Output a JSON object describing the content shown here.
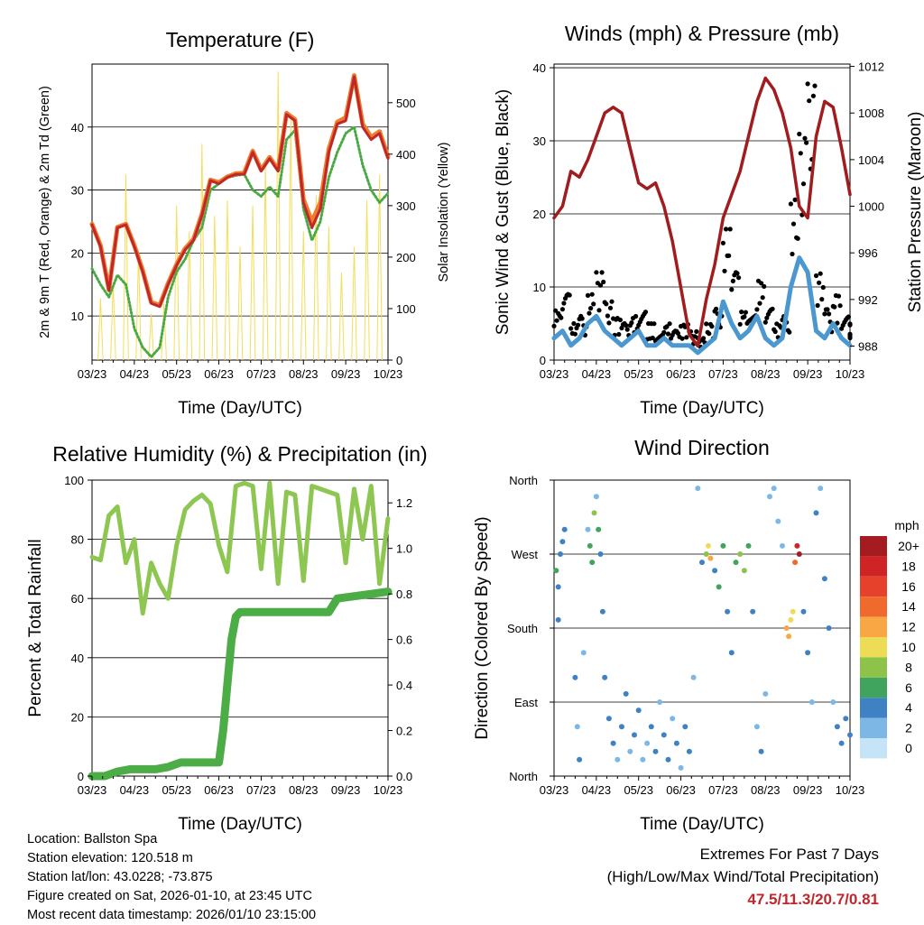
{
  "footer": {
    "location": "Location: Ballston Spa",
    "elevation": "Station elevation: 120.518 m",
    "latlon": "Station lat/lon: 43.0228; -73.875",
    "created": "Figure created on Sat, 2026-01-10, at 23:45 UTC",
    "recent": "Most recent data timestamp: 2026/01/10 23:15:00",
    "extremes_title": "Extremes For Past 7 Days",
    "extremes_sub": "(High/Low/Max Wind/Total Precipitation)",
    "extremes_values": "47.5/11.3/20.7/0.81"
  },
  "chart_data": [
    {
      "id": "temperature",
      "type": "line",
      "title": "Temperature (F)",
      "xlabel": "Time (Day/UTC)",
      "ylabel": "2m & 9m T (Red, Orange) & 2m Td (Green)",
      "y2label": "Solar Insolation (Yellow)",
      "x_ticks": [
        "03/23",
        "04/23",
        "05/23",
        "06/23",
        "07/23",
        "08/23",
        "09/23",
        "10/23"
      ],
      "ylim": [
        3,
        50
      ],
      "y_ticks": [
        10,
        20,
        30,
        40
      ],
      "y2lim": [
        0,
        575
      ],
      "y2_ticks": [
        0,
        100,
        200,
        300,
        400,
        500
      ],
      "x": [
        0,
        0.2,
        0.4,
        0.6,
        0.8,
        1.0,
        1.2,
        1.4,
        1.6,
        1.8,
        2.0,
        2.2,
        2.4,
        2.6,
        2.8,
        3.0,
        3.2,
        3.4,
        3.6,
        3.8,
        4.0,
        4.2,
        4.4,
        4.6,
        4.8,
        5.0,
        5.2,
        5.4,
        5.6,
        5.8,
        6.0,
        6.2,
        6.4,
        6.6,
        6.8,
        7.0
      ],
      "series": [
        {
          "name": "2m T",
          "color": "#c0272d",
          "values": [
            24.5,
            21,
            14,
            24,
            24.5,
            21,
            17,
            12,
            11.5,
            15,
            18,
            20.5,
            22,
            26,
            31.5,
            31,
            32,
            32.5,
            32.5,
            36,
            33,
            35,
            33,
            42,
            41,
            28,
            24,
            27,
            36,
            40.5,
            41,
            48,
            40,
            38,
            39,
            35
          ]
        },
        {
          "name": "9m T",
          "color": "#f07d28",
          "values": [
            24.6,
            21.2,
            14.2,
            24.1,
            24.6,
            21.2,
            17.2,
            12.2,
            11.7,
            15.2,
            18.2,
            20.7,
            22.2,
            26.2,
            31.6,
            31.2,
            32.1,
            32.6,
            32.7,
            36.2,
            33.2,
            35.2,
            33.2,
            42.2,
            41.2,
            28.5,
            25,
            28,
            36.5,
            40.8,
            41.5,
            48.2,
            40.5,
            38.4,
            39.3,
            35.3
          ]
        },
        {
          "name": "2m Td",
          "color": "#49a942",
          "values": [
            17.5,
            15,
            13,
            16.5,
            15,
            8,
            5,
            3.5,
            5,
            13,
            17,
            19,
            22,
            24,
            30,
            31,
            32,
            32.3,
            32.5,
            30,
            29,
            30.5,
            29,
            38,
            39.5,
            27,
            22,
            25,
            32,
            36,
            39,
            40,
            34,
            30,
            28,
            29.5
          ]
        }
      ],
      "solar": {
        "name": "Solar Insolation",
        "color": "#f5dd5a",
        "days": [
          0.2,
          0.5,
          0.8,
          1.1,
          1.4,
          1.7,
          2.0,
          2.3,
          2.6,
          2.9,
          3.2,
          3.5,
          3.8,
          4.1,
          4.4,
          4.7,
          5.0,
          5.3,
          5.6,
          5.9,
          6.2,
          6.5,
          6.8
        ],
        "peaks": [
          120,
          150,
          360,
          210,
          90,
          110,
          300,
          250,
          420,
          280,
          310,
          220,
          300,
          380,
          560,
          470,
          250,
          320,
          260,
          170,
          220,
          310,
          360
        ]
      }
    },
    {
      "id": "winds",
      "type": "line",
      "title": "Winds (mph) & Pressure (mb)",
      "xlabel": "Time (Day/UTC)",
      "ylabel": "Sonic Wind & Gust (Blue, Black)",
      "y2label": "Station Pressure (Maroon)",
      "x_ticks": [
        "03/23",
        "04/23",
        "05/23",
        "06/23",
        "07/23",
        "08/23",
        "09/23",
        "10/23"
      ],
      "ylim": [
        0,
        40.5
      ],
      "y_ticks": [
        0,
        10,
        20,
        30,
        40
      ],
      "y2lim": [
        986.8,
        1012.2
      ],
      "y2_ticks": [
        988,
        992,
        996,
        1000,
        1004,
        1008,
        1012
      ],
      "series": [
        {
          "name": "Station Pressure",
          "color": "#a01c1e",
          "x": [
            0,
            0.2,
            0.4,
            0.6,
            0.8,
            1.0,
            1.2,
            1.4,
            1.6,
            1.8,
            2.0,
            2.2,
            2.4,
            2.6,
            2.8,
            3.0,
            3.2,
            3.4,
            3.6,
            3.8,
            4.0,
            4.2,
            4.4,
            4.6,
            4.8,
            5.0,
            5.2,
            5.4,
            5.6,
            5.8,
            6.0,
            6.2,
            6.4,
            6.6,
            6.8,
            7.0
          ],
          "values": [
            999,
            1000,
            1003,
            1002.5,
            1004,
            1006,
            1008,
            1008.5,
            1008,
            1005,
            1002,
            1001.5,
            1002,
            1000,
            997,
            993,
            989,
            988,
            992,
            995,
            999,
            1001,
            1003,
            1006,
            1009,
            1011,
            1010,
            1008,
            1005,
            1000,
            999,
            1006,
            1009,
            1008.5,
            1005,
            1001
          ]
        },
        {
          "name": "Sonic Wind",
          "color": "#4b98d0",
          "x": [
            0,
            0.2,
            0.4,
            0.6,
            0.8,
            1.0,
            1.2,
            1.4,
            1.6,
            1.8,
            2.0,
            2.2,
            2.4,
            2.6,
            2.8,
            3.0,
            3.2,
            3.4,
            3.6,
            3.8,
            4.0,
            4.2,
            4.4,
            4.6,
            4.8,
            5.0,
            5.2,
            5.4,
            5.6,
            5.8,
            6.0,
            6.2,
            6.4,
            6.6,
            6.8,
            7.0
          ],
          "values": [
            3,
            4,
            2,
            3,
            5,
            6,
            4,
            3,
            2,
            3,
            4,
            2,
            2,
            3,
            2,
            2,
            2,
            1,
            2,
            3,
            8,
            5,
            3,
            4,
            6,
            3,
            2,
            3,
            10,
            14,
            12,
            4,
            3,
            5,
            3,
            2
          ]
        },
        {
          "name": "Gust",
          "color": "#000000",
          "x": [
            0,
            0.2,
            0.4,
            0.6,
            0.8,
            1.0,
            1.2,
            1.4,
            1.6,
            1.8,
            2.0,
            2.2,
            2.4,
            2.6,
            2.8,
            3.0,
            3.2,
            3.4,
            3.6,
            3.8,
            4.0,
            4.2,
            4.4,
            4.6,
            4.8,
            5.0,
            5.2,
            5.4,
            5.6,
            5.8,
            6.0,
            6.2,
            6.4,
            6.6,
            6.8,
            7.0
          ],
          "values": [
            7,
            9,
            5,
            6,
            9,
            12,
            8,
            6,
            5,
            6,
            7,
            5,
            4,
            5,
            4,
            5,
            4,
            3,
            5,
            7,
            18,
            12,
            7,
            9,
            11,
            7,
            5,
            6,
            22,
            31,
            38,
            12,
            7,
            9,
            6,
            5
          ]
        }
      ]
    },
    {
      "id": "humidity",
      "type": "line",
      "title": "Relative Humidity (%) & Precipitation (in)",
      "xlabel": "Time (Day/UTC)",
      "ylabel": "Percent & Total Rainfall",
      "x_ticks": [
        "03/23",
        "04/23",
        "05/23",
        "06/23",
        "07/23",
        "08/23",
        "09/23",
        "10/23"
      ],
      "ylim": [
        0,
        100
      ],
      "y_ticks": [
        0,
        20,
        40,
        60,
        80,
        100
      ],
      "y2lim": [
        0,
        1.3
      ],
      "y2_ticks": [
        "0.0",
        "0.2",
        "0.4",
        "0.6",
        "0.8",
        "1.0",
        "1.2"
      ],
      "series": [
        {
          "name": "Relative Humidity",
          "color": "#8dc751",
          "x": [
            0,
            0.2,
            0.4,
            0.6,
            0.8,
            1.0,
            1.2,
            1.4,
            1.6,
            1.8,
            2.0,
            2.2,
            2.4,
            2.6,
            2.8,
            3.0,
            3.2,
            3.4,
            3.6,
            3.8,
            4.0,
            4.2,
            4.4,
            4.6,
            4.8,
            5.0,
            5.2,
            5.4,
            5.6,
            5.8,
            6.0,
            6.2,
            6.4,
            6.6,
            6.8,
            7.0
          ],
          "values": [
            74,
            73,
            88,
            91,
            72,
            80,
            55,
            72,
            65,
            60,
            78,
            90,
            93,
            95,
            92,
            78,
            69,
            98,
            99,
            98,
            70,
            99,
            65,
            96,
            95,
            66,
            98,
            97,
            96,
            95,
            72,
            97,
            80,
            98,
            65,
            87
          ]
        },
        {
          "name": "Total Precipitation",
          "color": "#4cac45",
          "x": [
            0,
            0.3,
            0.6,
            0.9,
            1.2,
            1.5,
            1.8,
            2.1,
            2.4,
            2.7,
            3.0,
            3.1,
            3.2,
            3.3,
            3.4,
            3.5,
            3.6,
            3.8,
            4.0,
            4.5,
            5.0,
            5.4,
            5.6,
            5.8,
            6.2,
            6.6,
            7.0
          ],
          "values": [
            0,
            0,
            0.02,
            0.03,
            0.03,
            0.03,
            0.04,
            0.06,
            0.06,
            0.06,
            0.06,
            0.2,
            0.4,
            0.6,
            0.7,
            0.72,
            0.72,
            0.72,
            0.72,
            0.72,
            0.72,
            0.72,
            0.72,
            0.78,
            0.79,
            0.8,
            0.81
          ]
        }
      ]
    },
    {
      "id": "wind_direction",
      "type": "scatter",
      "title": "Wind Direction",
      "xlabel": "Time (Day/UTC)",
      "ylabel": "Direction (Colored By Speed)",
      "x_ticks": [
        "03/23",
        "04/23",
        "05/23",
        "06/23",
        "07/23",
        "08/23",
        "09/23",
        "10/23"
      ],
      "y_ticks": [
        "North",
        "East",
        "South",
        "West",
        "North"
      ],
      "ylim": [
        0,
        360
      ],
      "legend": {
        "title": "mph",
        "labels": [
          "20+",
          "18",
          "16",
          "14",
          "12",
          "10",
          "8",
          "6",
          "4",
          "2",
          "0"
        ],
        "colors": [
          "#a51c20",
          "#cf2426",
          "#e6412a",
          "#f0692d",
          "#f9a745",
          "#ecdc56",
          "#8ec34a",
          "#41a45e",
          "#3f82c4",
          "#7cb7e5",
          "#c5e4f7"
        ]
      },
      "points": [
        [
          0.05,
          250,
          5
        ],
        [
          0.1,
          230,
          4
        ],
        [
          0.15,
          270,
          4
        ],
        [
          0.2,
          285,
          3
        ],
        [
          0.25,
          300,
          4
        ],
        [
          0.1,
          190,
          4
        ],
        [
          0.5,
          120,
          3
        ],
        [
          0.55,
          60,
          2
        ],
        [
          0.6,
          20,
          4
        ],
        [
          0.7,
          150,
          2
        ],
        [
          0.8,
          300,
          2
        ],
        [
          0.85,
          280,
          6
        ],
        [
          0.9,
          260,
          5
        ],
        [
          0.95,
          320,
          7
        ],
        [
          1.0,
          340,
          2
        ],
        [
          1.05,
          300,
          6
        ],
        [
          1.1,
          270,
          4
        ],
        [
          1.15,
          200,
          3
        ],
        [
          1.2,
          120,
          4
        ],
        [
          1.3,
          70,
          3
        ],
        [
          1.4,
          40,
          4
        ],
        [
          1.5,
          20,
          2
        ],
        [
          1.6,
          60,
          3
        ],
        [
          1.7,
          100,
          3
        ],
        [
          1.8,
          30,
          2
        ],
        [
          1.9,
          50,
          4
        ],
        [
          2.0,
          80,
          3
        ],
        [
          2.1,
          20,
          2
        ],
        [
          2.2,
          40,
          2
        ],
        [
          2.3,
          60,
          4
        ],
        [
          2.4,
          30,
          3
        ],
        [
          2.5,
          90,
          2
        ],
        [
          2.6,
          50,
          4
        ],
        [
          2.7,
          20,
          3
        ],
        [
          2.8,
          70,
          2
        ],
        [
          2.9,
          40,
          3
        ],
        [
          3.0,
          10,
          2
        ],
        [
          3.1,
          60,
          4
        ],
        [
          3.2,
          30,
          3
        ],
        [
          3.3,
          120,
          2
        ],
        [
          3.4,
          350,
          2
        ],
        [
          3.5,
          260,
          4
        ],
        [
          3.6,
          270,
          7
        ],
        [
          3.65,
          280,
          10
        ],
        [
          3.7,
          265,
          11
        ],
        [
          3.8,
          250,
          4
        ],
        [
          3.9,
          230,
          5
        ],
        [
          4.0,
          280,
          6
        ],
        [
          4.1,
          200,
          4
        ],
        [
          4.2,
          150,
          3
        ],
        [
          4.3,
          260,
          6
        ],
        [
          4.4,
          270,
          8
        ],
        [
          4.5,
          250,
          7
        ],
        [
          4.6,
          280,
          6
        ],
        [
          4.7,
          200,
          3
        ],
        [
          4.8,
          60,
          2
        ],
        [
          4.9,
          30,
          3
        ],
        [
          5.0,
          100,
          2
        ],
        [
          5.1,
          340,
          2
        ],
        [
          5.2,
          350,
          1
        ],
        [
          5.3,
          310,
          2
        ],
        [
          5.4,
          280,
          2
        ],
        [
          5.5,
          180,
          11
        ],
        [
          5.55,
          170,
          12
        ],
        [
          5.6,
          190,
          10
        ],
        [
          5.65,
          200,
          9
        ],
        [
          5.7,
          260,
          13
        ],
        [
          5.75,
          280,
          17
        ],
        [
          5.8,
          270,
          19
        ],
        [
          5.9,
          200,
          4
        ],
        [
          6.0,
          150,
          3
        ],
        [
          6.1,
          90,
          2
        ],
        [
          6.2,
          320,
          3
        ],
        [
          6.3,
          350,
          2
        ],
        [
          6.4,
          240,
          4
        ],
        [
          6.5,
          180,
          3
        ],
        [
          6.6,
          90,
          2
        ],
        [
          6.7,
          60,
          4
        ],
        [
          6.8,
          40,
          3
        ],
        [
          6.9,
          70,
          4
        ],
        [
          7.0,
          50,
          3
        ]
      ]
    }
  ]
}
